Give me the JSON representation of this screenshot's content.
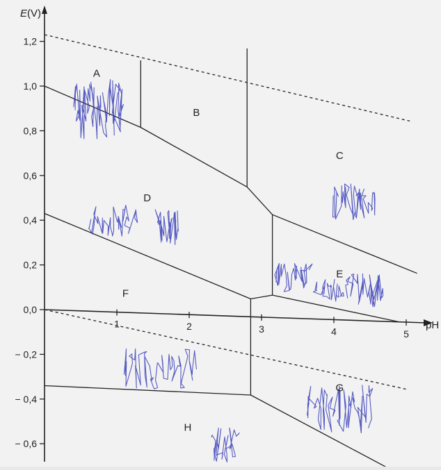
{
  "diagram": {
    "axes": {
      "y_label_italic": "E",
      "y_label_unit": "(V)",
      "x_label": "pH",
      "y_ticks": [
        {
          "value": 1.2,
          "label": "1,2"
        },
        {
          "value": 1.0,
          "label": "1,0"
        },
        {
          "value": 0.8,
          "label": "0,8"
        },
        {
          "value": 0.6,
          "label": "0,6"
        },
        {
          "value": 0.4,
          "label": "0,4"
        },
        {
          "value": 0.2,
          "label": "0,2"
        },
        {
          "value": 0.0,
          "label": "0,0"
        },
        {
          "value": -0.2,
          "label": "− 0,2"
        },
        {
          "value": -0.4,
          "label": "− 0,4"
        },
        {
          "value": -0.6,
          "label": "− 0,6"
        }
      ],
      "x_ticks": [
        {
          "value": 1,
          "label": "1"
        },
        {
          "value": 2,
          "label": "2"
        },
        {
          "value": 3,
          "label": "3"
        },
        {
          "value": 4,
          "label": "4"
        },
        {
          "value": 5,
          "label": "5"
        }
      ]
    },
    "region_labels": [
      {
        "id": "A",
        "label": "A",
        "ph": 0.72,
        "e": 1.05
      },
      {
        "id": "B",
        "label": "B",
        "ph": 2.1,
        "e": 0.89
      },
      {
        "id": "C",
        "label": "C",
        "ph": 4.08,
        "e": 0.72
      },
      {
        "id": "D",
        "label": "D",
        "ph": 1.42,
        "e": 0.5
      },
      {
        "id": "E",
        "label": "E",
        "ph": 4.08,
        "e": 0.19
      },
      {
        "id": "F",
        "label": "F",
        "ph": 1.12,
        "e": 0.07
      },
      {
        "id": "G",
        "label": "G",
        "ph": 4.08,
        "e": -0.32
      },
      {
        "id": "H",
        "label": "H",
        "ph": 1.98,
        "e": -0.52
      }
    ],
    "boundaries": [
      {
        "id": "o2-water-line",
        "style": "dashed",
        "points": [
          [
            0.0,
            1.23
          ],
          [
            5.05,
            0.9
          ]
        ]
      },
      {
        "id": "h2-water-line",
        "style": "dashed",
        "points": [
          [
            0.0,
            0.0
          ],
          [
            5.0,
            -0.3
          ]
        ]
      },
      {
        "id": "a-b-vertical",
        "style": "solid",
        "points": [
          [
            1.33,
            1.13
          ],
          [
            1.33,
            0.83
          ]
        ]
      },
      {
        "id": "b-c-vertical",
        "style": "solid",
        "points": [
          [
            2.8,
            1.2
          ],
          [
            2.8,
            0.58
          ]
        ]
      },
      {
        "id": "a-d-line",
        "style": "solid",
        "points": [
          [
            0.0,
            1.0
          ],
          [
            1.33,
            0.83
          ]
        ]
      },
      {
        "id": "b-d-line",
        "style": "solid",
        "points": [
          [
            1.33,
            0.83
          ],
          [
            2.8,
            0.58
          ]
        ]
      },
      {
        "id": "c-d-line",
        "style": "solid",
        "points": [
          [
            2.8,
            0.58
          ],
          [
            3.15,
            0.46
          ]
        ]
      },
      {
        "id": "c-e-line",
        "style": "solid",
        "points": [
          [
            3.15,
            0.46
          ],
          [
            5.15,
            0.22
          ]
        ]
      },
      {
        "id": "d-e-vertical",
        "style": "solid",
        "points": [
          [
            3.15,
            0.46
          ],
          [
            3.15,
            0.1
          ]
        ]
      },
      {
        "id": "d-f-line",
        "style": "solid",
        "points": [
          [
            0.0,
            0.43
          ],
          [
            2.85,
            0.08
          ]
        ]
      },
      {
        "id": "f-e-step",
        "style": "solid",
        "points": [
          [
            2.85,
            0.08
          ],
          [
            3.15,
            0.1
          ]
        ]
      },
      {
        "id": "e-lower-line",
        "style": "solid",
        "points": [
          [
            3.15,
            0.1
          ],
          [
            4.9,
            0.0
          ]
        ]
      },
      {
        "id": "f-g-vertical",
        "style": "solid",
        "points": [
          [
            2.85,
            0.08
          ],
          [
            2.85,
            -0.35
          ]
        ]
      },
      {
        "id": "f-h-line",
        "style": "solid",
        "points": [
          [
            0.0,
            -0.34
          ],
          [
            2.85,
            -0.35
          ]
        ]
      },
      {
        "id": "g-h-line",
        "style": "solid",
        "points": [
          [
            2.85,
            -0.35
          ],
          [
            4.9,
            -0.68
          ]
        ]
      }
    ],
    "pen_marks": [
      {
        "id": "scribble-a",
        "ph": 0.78,
        "e": 0.9,
        "w": 74,
        "h": 90,
        "dense": 34
      },
      {
        "id": "scribble-d-left",
        "ph": 0.98,
        "e": 0.41,
        "w": 70,
        "h": 46,
        "dense": 22
      },
      {
        "id": "scribble-d-right",
        "ph": 1.72,
        "e": 0.39,
        "w": 30,
        "h": 56,
        "dense": 16
      },
      {
        "id": "scribble-c",
        "ph": 4.3,
        "e": 0.53,
        "w": 64,
        "h": 52,
        "dense": 26
      },
      {
        "id": "scribble-e-left",
        "ph": 3.45,
        "e": 0.18,
        "w": 52,
        "h": 42,
        "dense": 18
      },
      {
        "id": "scribble-e-mid",
        "ph": 3.95,
        "e": 0.13,
        "w": 40,
        "h": 32,
        "dense": 14
      },
      {
        "id": "scribble-e-right",
        "ph": 4.45,
        "e": 0.14,
        "w": 54,
        "h": 52,
        "dense": 20
      },
      {
        "id": "scribble-f-g",
        "ph": 1.62,
        "e": -0.25,
        "w": 104,
        "h": 60,
        "dense": 30
      },
      {
        "id": "scribble-g",
        "ph": 4.1,
        "e": -0.4,
        "w": 96,
        "h": 70,
        "dense": 30
      },
      {
        "id": "scribble-h",
        "ph": 2.5,
        "e": -0.58,
        "w": 40,
        "h": 52,
        "dense": 16
      }
    ],
    "colors": {
      "ink": "#222222",
      "pen": "#3a40b8",
      "paper": "#f4f4f4"
    }
  }
}
